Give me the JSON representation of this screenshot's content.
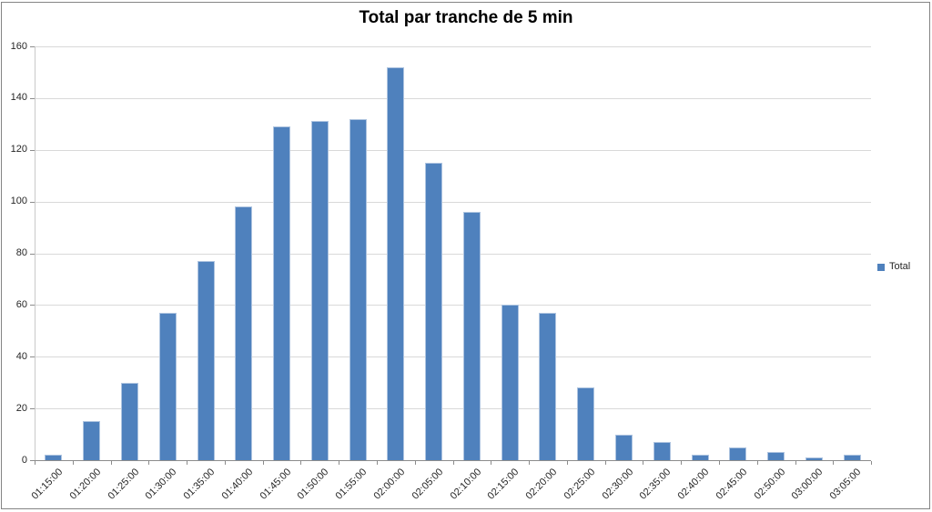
{
  "chart": {
    "title": "Total par tranche de 5 min",
    "legend": {
      "label": "Total"
    }
  },
  "colors": {
    "bar_fill": "#4F81BD",
    "bar_edge": "#AEC4E0",
    "gridline": "#D9D9D9",
    "axis_line": "#8C8C8C",
    "plot_border_line": "#C9C9C9",
    "chart_border": "#848484",
    "label_text": "#262626",
    "title_text": "#000000"
  },
  "y_axis": {
    "min": 0,
    "max": 160,
    "step": 20,
    "tick_labels": [
      "0",
      "20",
      "40",
      "60",
      "80",
      "100",
      "120",
      "140",
      "160"
    ]
  },
  "chart_data": {
    "type": "bar",
    "title": "Total par tranche de 5 min",
    "categories": [
      "01:15:00",
      "01:20:00",
      "01:25:00",
      "01:30:00",
      "01:35:00",
      "01:40:00",
      "01:45:00",
      "01:50:00",
      "01:55:00",
      "02:00:00",
      "02:05:00",
      "02:10:00",
      "02:15:00",
      "02:20:00",
      "02:25:00",
      "02:30:00",
      "02:35:00",
      "02:40:00",
      "02:45:00",
      "02:50:00",
      "03:00:00",
      "03:05:00"
    ],
    "series": [
      {
        "name": "Total",
        "values": [
          2,
          15,
          30,
          57,
          77,
          98,
          129,
          131,
          132,
          152,
          115,
          96,
          60,
          57,
          28,
          10,
          7,
          2,
          5,
          3,
          1,
          2
        ]
      }
    ],
    "xlabel": "",
    "ylabel": "",
    "ylim": [
      0,
      160
    ],
    "grid": true,
    "legend_position": "right-middle"
  }
}
